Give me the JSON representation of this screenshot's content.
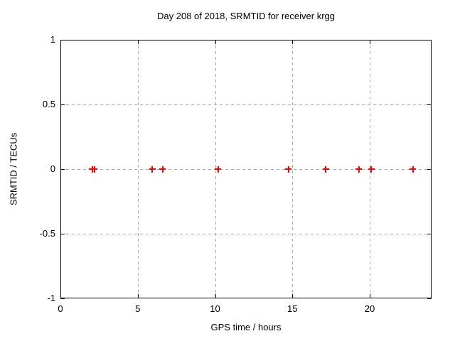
{
  "window": {
    "background": "#ffffff"
  },
  "chart_data": {
    "type": "scatter",
    "title": "Day 208 of 2018, SRMTID for receiver krgg",
    "xlabel": "GPS time / hours",
    "ylabel": "SRMTID / TECUs",
    "xlim": [
      0,
      24
    ],
    "ylim": [
      -1,
      1
    ],
    "x_ticks": [
      {
        "value": 0,
        "label": "0"
      },
      {
        "value": 5,
        "label": "5"
      },
      {
        "value": 10,
        "label": "10"
      },
      {
        "value": 15,
        "label": "15"
      },
      {
        "value": 20,
        "label": "20"
      }
    ],
    "y_ticks": [
      {
        "value": -1,
        "label": "-1"
      },
      {
        "value": -0.5,
        "label": "-0.5"
      },
      {
        "value": 0,
        "label": "0"
      },
      {
        "value": 0.5,
        "label": "0.5"
      },
      {
        "value": 1,
        "label": "1"
      }
    ],
    "grid": true,
    "legend": "none",
    "marker": "plus",
    "colors": {
      "marker": "#ff0000",
      "grid": "#a8a8a8",
      "axis": "#000000",
      "text": "#000000"
    },
    "series": [
      {
        "name": "",
        "x": [
          2.05,
          2.2,
          5.95,
          6.6,
          10.2,
          14.75,
          17.15,
          19.3,
          20.1,
          22.8
        ],
        "y": [
          0,
          0,
          0,
          0,
          0,
          0,
          0,
          0,
          0,
          0
        ]
      }
    ]
  }
}
